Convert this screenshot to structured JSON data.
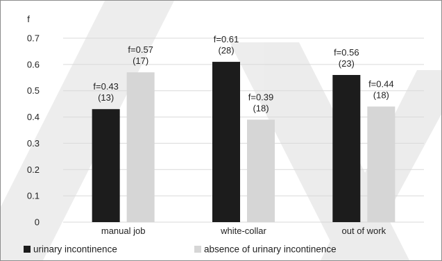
{
  "chart_data": {
    "type": "bar",
    "ylabel": "f",
    "categories": [
      "manual job",
      "white-collar",
      "out of work"
    ],
    "ylim": [
      0,
      0.7
    ],
    "yticks": [
      "0",
      "0.1",
      "0.2",
      "0.3",
      "0.4",
      "0.5",
      "0.6",
      "0.7"
    ],
    "grid": true,
    "legend_position": "bottom-left",
    "series": [
      {
        "name": "urinary incontinence",
        "color": "#1c1c1c",
        "values": [
          0.43,
          0.61,
          0.56
        ],
        "labels": [
          {
            "line1": "f=0.43",
            "line2": "(13)"
          },
          {
            "line1": "f=0.61",
            "line2": "(28)"
          },
          {
            "line1": "f=0.56",
            "line2": "(23)"
          }
        ]
      },
      {
        "name": "absence of urinary incontinence",
        "color": "#d6d6d6",
        "values": [
          0.57,
          0.39,
          0.44
        ],
        "labels": [
          {
            "line1": "f=0.57",
            "line2": "(17)"
          },
          {
            "line1": "f=0.39",
            "line2": "(18)"
          },
          {
            "line1": "f=0.44",
            "line2": "(18)"
          }
        ]
      }
    ]
  }
}
